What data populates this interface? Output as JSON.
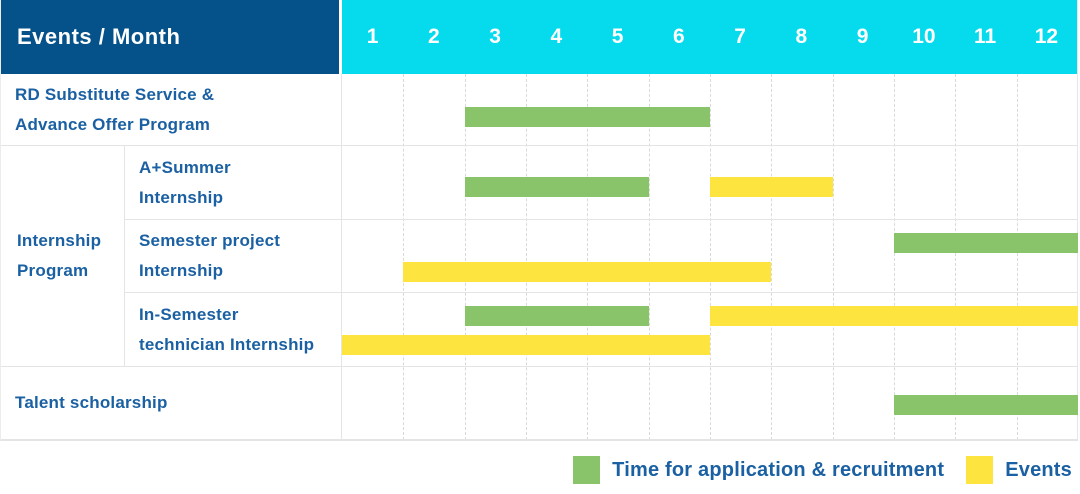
{
  "chart_data": {
    "type": "gantt",
    "header_label": "Events / Month",
    "months": [
      "1",
      "2",
      "3",
      "4",
      "5",
      "6",
      "7",
      "8",
      "9",
      "10",
      "11",
      "12"
    ],
    "x_range": [
      1,
      12
    ],
    "grid": true,
    "rows": [
      {
        "label_lines": [
          "RD Substitute Service &",
          "Advance Offer Program"
        ],
        "group": "",
        "bars": [
          {
            "kind": "application",
            "start_month": 3,
            "end_month": 6,
            "lane": 0
          }
        ]
      },
      {
        "label_lines": [
          "A+Summer",
          "Internship"
        ],
        "group": "Internship Program",
        "bars": [
          {
            "kind": "application",
            "start_month": 3,
            "end_month": 5,
            "lane": 0
          },
          {
            "kind": "event",
            "start_month": 7,
            "end_month": 8,
            "lane": 0
          }
        ]
      },
      {
        "label_lines": [
          "Semester project",
          "Internship"
        ],
        "group": "Internship Program",
        "bars": [
          {
            "kind": "application",
            "start_month": 10,
            "end_month": 12,
            "lane": 0
          },
          {
            "kind": "event",
            "start_month": 2,
            "end_month": 7,
            "lane": 1
          }
        ]
      },
      {
        "label_lines": [
          "In-Semester",
          "technician Internship"
        ],
        "group": "Internship Program",
        "bars": [
          {
            "kind": "application",
            "start_month": 3,
            "end_month": 5,
            "lane": 0
          },
          {
            "kind": "event",
            "start_month": 7,
            "end_month": 12,
            "lane": 0
          },
          {
            "kind": "event",
            "start_month": 1,
            "end_month": 6,
            "lane": 1
          }
        ]
      },
      {
        "label_lines": [
          "Talent scholarship"
        ],
        "group": "",
        "bars": [
          {
            "kind": "application",
            "start_month": 10,
            "end_month": 12,
            "lane": 0
          }
        ]
      }
    ],
    "group_cells": [
      {
        "label_lines": [
          "Internship",
          "Program"
        ],
        "row_start": 2,
        "row_end": 4
      }
    ],
    "legend": [
      {
        "kind": "application",
        "label": "Time for application & recruitment",
        "color": "#8ac46a"
      },
      {
        "kind": "event",
        "label": "Events",
        "color": "#fde43e"
      }
    ]
  },
  "colors": {
    "header_bg": "#05518a",
    "month_header_bg": "#06daed",
    "header_text": "#ffffff",
    "label_text": "#1a60a2",
    "application_bar": "#8ac46a",
    "event_bar": "#fde43e",
    "gridline": "#d9d9d9",
    "row_border": "#e4e4e4"
  }
}
